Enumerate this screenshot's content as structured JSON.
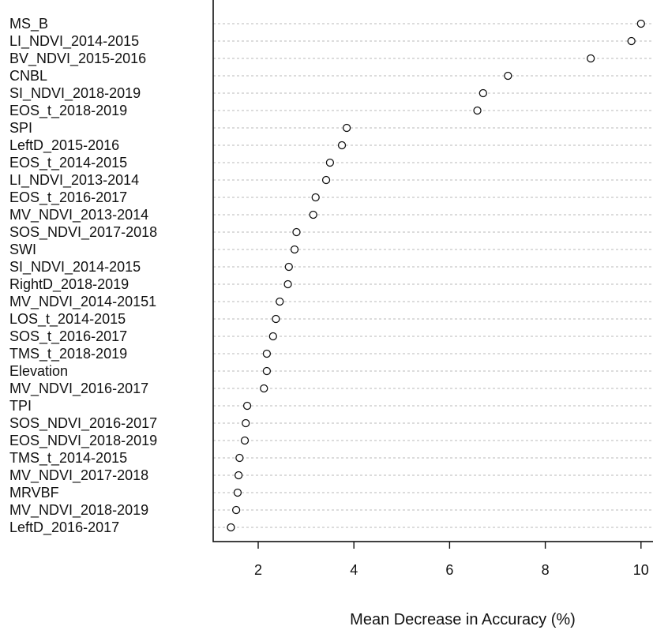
{
  "chart_data": {
    "type": "scatter",
    "variant": "dotchart",
    "xlabel": "Mean Decrease in Accuracy  (%)",
    "xlim": [
      1.1,
      10.25
    ],
    "xticks": [
      "2",
      "4",
      "6",
      "8",
      "10"
    ],
    "xtick_values": [
      2,
      4,
      6,
      8,
      10
    ],
    "grid": "dotted horizontal guides",
    "categories": [
      "MS_B",
      "LI_NDVI_2014-2015",
      "BV_NDVI_2015-2016",
      "CNBL",
      "SI_NDVI_2018-2019",
      "EOS_t_2018-2019",
      "SPI",
      "LeftD_2015-2016",
      "EOS_t_2014-2015",
      "LI_NDVI_2013-2014",
      "EOS_t_2016-2017",
      "MV_NDVI_2013-2014",
      "SOS_NDVI_2017-2018",
      "SWI",
      "SI_NDVI_2014-2015",
      "RightD_2018-2019",
      "MV_NDVI_2014-20151",
      "LOS_t_2014-2015",
      "SOS_t_2016-2017",
      "TMS_t_2018-2019",
      "Elevation",
      "MV_NDVI_2016-2017",
      "TPI",
      "SOS_NDVI_2016-2017",
      "EOS_NDVI_2018-2019",
      "TMS_t_2014-2015",
      "MV_NDVI_2017-2018",
      "MRVBF",
      "MV_NDVI_2018-2019",
      "LeftD_2016-2017"
    ],
    "values": [
      10.0,
      9.8,
      8.95,
      7.22,
      6.7,
      6.58,
      3.85,
      3.75,
      3.5,
      3.42,
      3.2,
      3.15,
      2.8,
      2.76,
      2.64,
      2.62,
      2.45,
      2.37,
      2.31,
      2.18,
      2.18,
      2.12,
      1.77,
      1.74,
      1.72,
      1.61,
      1.59,
      1.57,
      1.54,
      1.43
    ]
  }
}
